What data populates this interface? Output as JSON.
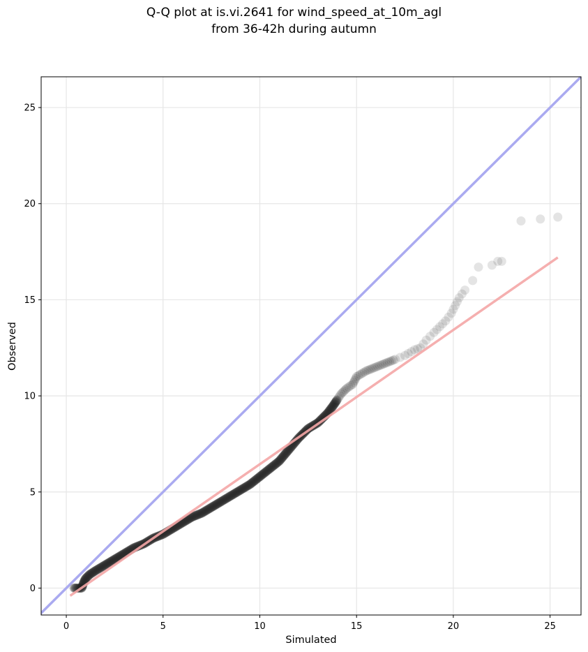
{
  "chart_data": {
    "type": "scatter",
    "title": "Q-Q plot at is.vi.2641 for wind_speed_at_10m_agl",
    "subtitle": "from 36-42h during autumn",
    "xlabel": "Simulated",
    "ylabel": "Observed",
    "xlim": [
      -1.3,
      26.6
    ],
    "ylim": [
      -1.4,
      26.6
    ],
    "xticks": [
      0,
      5,
      10,
      15,
      20,
      25
    ],
    "yticks": [
      0,
      5,
      10,
      15,
      20,
      25
    ],
    "grid": true,
    "quantile_curve": {
      "x": [
        0.4,
        0.5,
        0.7,
        0.8,
        0.9,
        1.0,
        1.2,
        1.5,
        2.0,
        2.5,
        3.0,
        3.5,
        4.0,
        4.5,
        5.0,
        5.5,
        6.0,
        6.5,
        7.0,
        7.5,
        8.0,
        8.5,
        9.0,
        9.5,
        10.0,
        10.5,
        11.0,
        11.5,
        12.0,
        12.5,
        13.0,
        13.5,
        13.8,
        14.0,
        14.2,
        14.5,
        14.8,
        15.0,
        15.5,
        16.0,
        16.5,
        17.0,
        17.5,
        18.0,
        18.3,
        18.6,
        19.0,
        19.3,
        19.6,
        19.9,
        20.1,
        20.3,
        20.6
      ],
      "y": [
        0.0,
        0.0,
        0.0,
        0.0,
        0.3,
        0.5,
        0.7,
        0.9,
        1.2,
        1.5,
        1.8,
        2.1,
        2.3,
        2.6,
        2.8,
        3.1,
        3.4,
        3.7,
        3.9,
        4.2,
        4.5,
        4.8,
        5.1,
        5.4,
        5.8,
        6.2,
        6.6,
        7.2,
        7.8,
        8.3,
        8.6,
        9.1,
        9.5,
        9.8,
        10.1,
        10.4,
        10.6,
        11.0,
        11.3,
        11.5,
        11.7,
        11.9,
        12.1,
        12.4,
        12.5,
        12.9,
        13.3,
        13.6,
        13.9,
        14.3,
        14.7,
        15.1,
        15.5
      ]
    },
    "outliers": {
      "x": [
        21.0,
        21.3,
        22.0,
        22.3,
        22.5,
        23.5,
        24.5,
        25.4
      ],
      "y": [
        16.0,
        16.7,
        16.8,
        17.0,
        17.0,
        19.1,
        19.2,
        19.3
      ]
    },
    "reference_line": {
      "slope": 1,
      "intercept": 0,
      "color": "#aaaaf0"
    },
    "fit_line": {
      "x": [
        0.2,
        25.4
      ],
      "y": [
        -0.4,
        17.2
      ],
      "color": "#f4a6a6"
    },
    "point_color": "#222222"
  }
}
